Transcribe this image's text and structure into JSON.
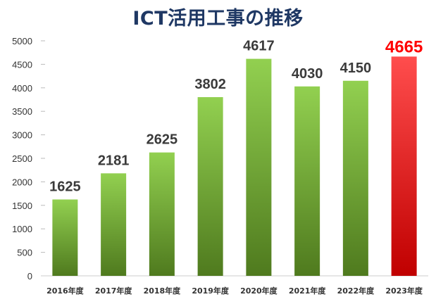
{
  "chart_data": {
    "type": "bar",
    "title": "ICT活用工事の推移",
    "categories": [
      "2016年度",
      "2017年度",
      "2018年度",
      "2019年度",
      "2020年度",
      "2021年度",
      "2022年度",
      "2023年度"
    ],
    "values": [
      1625,
      2181,
      2625,
      3802,
      4617,
      4030,
      4150,
      4665
    ],
    "ylim": [
      0,
      5000
    ],
    "yticks": [
      0,
      500,
      1000,
      1500,
      2000,
      2500,
      3000,
      3500,
      4000,
      4500,
      5000
    ],
    "highlight_index": 7,
    "colors": {
      "bar_top": "#92d050",
      "bar_bottom": "#4f7a1e",
      "highlight_top": "#ff4d4d",
      "highlight_bottom": "#c00000",
      "highlight_label": "#ff0000",
      "title": "#1f3864"
    }
  }
}
